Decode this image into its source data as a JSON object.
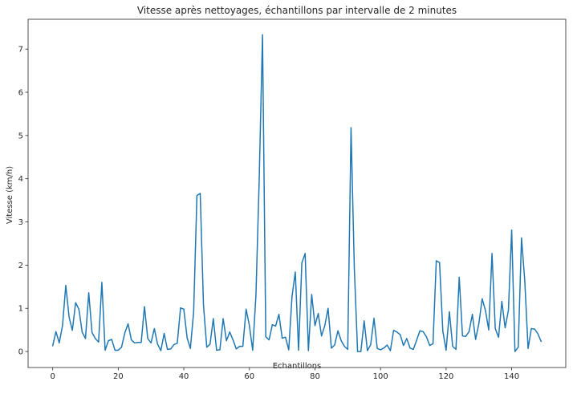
{
  "chart_data": {
    "type": "line",
    "title": "Vitesse après nettoyages, échantillons par intervalle de 2 minutes",
    "xlabel": "Echantillons",
    "ylabel": "Vitesse (km/h)",
    "xlim": [
      -7.5,
      156.5
    ],
    "ylim": [
      -0.37,
      7.69
    ],
    "xticks": [
      0,
      20,
      40,
      60,
      80,
      100,
      120,
      140
    ],
    "yticks": [
      0,
      1,
      2,
      3,
      4,
      5,
      6,
      7
    ],
    "grid": false,
    "series": [
      {
        "color": "#1f77b4",
        "x": [
          0,
          1,
          2,
          3,
          4,
          5,
          6,
          7,
          8,
          9,
          10,
          11,
          12,
          13,
          14,
          15,
          16,
          17,
          18,
          19,
          20,
          21,
          22,
          23,
          24,
          25,
          26,
          27,
          28,
          29,
          30,
          31,
          32,
          33,
          34,
          35,
          36,
          37,
          38,
          39,
          40,
          41,
          42,
          43,
          44,
          45,
          46,
          47,
          48,
          49,
          50,
          51,
          52,
          53,
          54,
          55,
          56,
          57,
          58,
          59,
          60,
          61,
          62,
          63,
          64,
          65,
          66,
          67,
          68,
          69,
          70,
          71,
          72,
          73,
          74,
          75,
          76,
          77,
          78,
          79,
          80,
          81,
          82,
          83,
          84,
          85,
          86,
          87,
          88,
          89,
          90,
          91,
          92,
          93,
          94,
          95,
          96,
          97,
          98,
          99,
          100,
          101,
          102,
          103,
          104,
          105,
          106,
          107,
          108,
          109,
          110,
          111,
          112,
          113,
          114,
          115,
          116,
          117,
          118,
          119,
          120,
          121,
          122,
          123,
          124,
          125,
          126,
          127,
          128,
          129,
          130,
          131,
          132,
          133,
          134,
          135,
          136,
          137,
          138,
          139,
          140,
          141,
          142,
          143,
          144,
          145,
          146,
          147,
          148,
          149
        ],
        "values": [
          0.13,
          0.46,
          0.2,
          0.6,
          1.53,
          0.8,
          0.49,
          1.13,
          0.98,
          0.45,
          0.3,
          1.36,
          0.44,
          0.3,
          0.22,
          1.6,
          0.03,
          0.25,
          0.28,
          0.03,
          0.03,
          0.1,
          0.43,
          0.64,
          0.27,
          0.2,
          0.21,
          0.21,
          1.04,
          0.3,
          0.2,
          0.53,
          0.17,
          0.02,
          0.42,
          0.05,
          0.06,
          0.16,
          0.19,
          1.01,
          0.98,
          0.32,
          0.07,
          0.92,
          3.61,
          3.66,
          1.07,
          0.1,
          0.17,
          0.76,
          0.03,
          0.04,
          0.76,
          0.25,
          0.45,
          0.27,
          0.06,
          0.12,
          0.12,
          0.98,
          0.6,
          0.03,
          1.3,
          4.0,
          7.33,
          0.34,
          0.27,
          0.62,
          0.59,
          0.86,
          0.31,
          0.33,
          0.04,
          1.27,
          1.84,
          0.03,
          2.05,
          2.27,
          0.02,
          1.32,
          0.6,
          0.88,
          0.36,
          0.6,
          1.0,
          0.08,
          0.15,
          0.48,
          0.25,
          0.12,
          0.05,
          5.18,
          1.94,
          0.0,
          0.0,
          0.71,
          0.02,
          0.16,
          0.77,
          0.07,
          0.04,
          0.08,
          0.15,
          0.02,
          0.49,
          0.45,
          0.39,
          0.14,
          0.3,
          0.08,
          0.05,
          0.26,
          0.48,
          0.46,
          0.34,
          0.14,
          0.18,
          2.1,
          2.06,
          0.47,
          0.03,
          0.92,
          0.12,
          0.05,
          1.72,
          0.36,
          0.35,
          0.46,
          0.86,
          0.28,
          0.65,
          1.22,
          0.95,
          0.5,
          2.27,
          0.53,
          0.33,
          1.16,
          0.55,
          0.95,
          2.81,
          0.0,
          0.1,
          2.63,
          1.63,
          0.07,
          0.53,
          0.52,
          0.41,
          0.23
        ]
      }
    ]
  }
}
